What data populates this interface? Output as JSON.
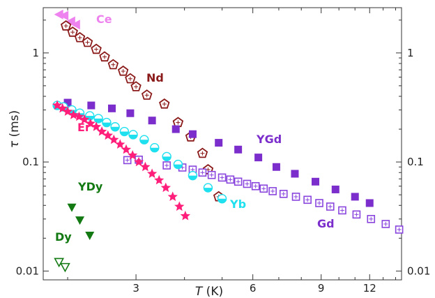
{
  "chart_data": {
    "type": "scatter",
    "title": "",
    "xlabel": "T (K)",
    "xlabel_italic": "T",
    "xlabel_unit": " (K)",
    "ylabel": "τ (ms)",
    "ylabel_italic": "τ",
    "ylabel_unit": " (ms)",
    "x_scale": "log",
    "y_scale": "log",
    "xlim": [
      1.73,
      14.5
    ],
    "ylim": [
      0.0083,
      2.6
    ],
    "xticks": [
      3,
      6,
      9,
      12
    ],
    "yticks": [
      0.01,
      0.1,
      1
    ],
    "xtick_labels": [
      "3",
      "6",
      "9",
      "12"
    ],
    "ytick_labels": [
      "0.01",
      "0.1",
      "1"
    ],
    "right_axis_labels": true,
    "grid": false,
    "legend": "none (series labelled directly)",
    "series": [
      {
        "name": "Ce",
        "color": "#ee82ee",
        "marker": "triangle-left",
        "filled": true,
        "x": [
          1.9,
          1.96,
          2.04,
          2.1
        ],
        "y": [
          2.25,
          2.2,
          1.95,
          1.82
        ]
      },
      {
        "name": "Nd",
        "color": "#8b1a1a",
        "marker": "pentagon-cross",
        "filled": false,
        "x": [
          1.98,
          2.06,
          2.15,
          2.25,
          2.37,
          2.49,
          2.62,
          2.78,
          2.9,
          3.0,
          3.2,
          3.55,
          3.85,
          4.15,
          4.45,
          4.6,
          4.9
        ],
        "y": [
          1.77,
          1.55,
          1.38,
          1.25,
          1.08,
          0.92,
          0.78,
          0.68,
          0.58,
          0.49,
          0.41,
          0.34,
          0.23,
          0.17,
          0.12,
          0.085,
          0.048
        ]
      },
      {
        "name": "YGd",
        "color": "#7b2ecc",
        "marker": "square",
        "filled": true,
        "x": [
          2.0,
          2.3,
          2.6,
          2.9,
          3.3,
          3.8,
          4.2,
          4.9,
          5.5,
          6.2,
          6.9,
          7.7,
          8.7,
          9.8,
          11.0,
          12.0
        ],
        "y": [
          0.35,
          0.33,
          0.31,
          0.28,
          0.24,
          0.2,
          0.18,
          0.15,
          0.13,
          0.11,
          0.09,
          0.078,
          0.066,
          0.056,
          0.048,
          0.042
        ]
      },
      {
        "name": "Gd",
        "color": "#8844dd",
        "marker": "square-cross",
        "filled": false,
        "x": [
          2.85,
          3.05,
          3.6,
          3.95,
          4.2,
          4.45,
          4.7,
          5.0,
          5.25,
          5.5,
          5.8,
          6.1,
          6.4,
          6.75,
          7.2,
          7.75,
          8.3,
          8.9,
          9.5,
          10.2,
          11.1,
          12.1,
          13.2,
          14.3
        ],
        "y": [
          0.104,
          0.105,
          0.093,
          0.089,
          0.085,
          0.08,
          0.076,
          0.072,
          0.069,
          0.066,
          0.063,
          0.06,
          0.057,
          0.054,
          0.051,
          0.048,
          0.045,
          0.042,
          0.039,
          0.036,
          0.033,
          0.03,
          0.027,
          0.024
        ]
      },
      {
        "name": "Yb",
        "color": "#1ee0ee",
        "marker": "circle-half",
        "filled": true,
        "x": [
          1.88,
          1.95,
          2.05,
          2.15,
          2.28,
          2.4,
          2.52,
          2.65,
          2.8,
          2.95,
          3.15,
          3.35,
          3.6,
          3.85,
          4.2,
          4.6,
          5.0
        ],
        "y": [
          0.33,
          0.32,
          0.3,
          0.28,
          0.265,
          0.25,
          0.23,
          0.21,
          0.19,
          0.178,
          0.16,
          0.135,
          0.112,
          0.095,
          0.075,
          0.058,
          0.046
        ]
      },
      {
        "name": "Er",
        "color": "#ff1e7a",
        "marker": "star",
        "filled": true,
        "x": [
          1.88,
          1.94,
          2.0,
          2.07,
          2.14,
          2.21,
          2.29,
          2.37,
          2.45,
          2.54,
          2.63,
          2.73,
          2.83,
          2.94,
          3.05,
          3.17,
          3.3,
          3.44,
          3.58,
          3.73,
          3.88,
          4.02
        ],
        "y": [
          0.33,
          0.31,
          0.29,
          0.27,
          0.26,
          0.245,
          0.225,
          0.21,
          0.19,
          0.175,
          0.16,
          0.145,
          0.13,
          0.115,
          0.1,
          0.09,
          0.078,
          0.068,
          0.058,
          0.048,
          0.039,
          0.032
        ]
      },
      {
        "name": "YDy",
        "color": "#137a13",
        "marker": "triangle-down",
        "filled": true,
        "x": [
          2.05,
          2.15,
          2.28
        ],
        "y": [
          0.038,
          0.029,
          0.021
        ]
      },
      {
        "name": "Dy",
        "color": "#137a13",
        "marker": "triangle-down",
        "filled": false,
        "x": [
          1.9,
          1.97
        ],
        "y": [
          0.012,
          0.0108
        ]
      }
    ],
    "annotations": [
      {
        "text": "Ce",
        "color": "#ee82ee"
      },
      {
        "text": "Nd",
        "color": "#8b1a1a"
      },
      {
        "text": "Er",
        "color": "#ff1e7a"
      },
      {
        "text": "YGd",
        "color": "#7b2ecc"
      },
      {
        "text": "Yb",
        "color": "#1ee0ee"
      },
      {
        "text": "Gd",
        "color": "#7b2ecc"
      },
      {
        "text": "YDy",
        "color": "#137a13"
      },
      {
        "text": "Dy",
        "color": "#137a13"
      }
    ]
  }
}
